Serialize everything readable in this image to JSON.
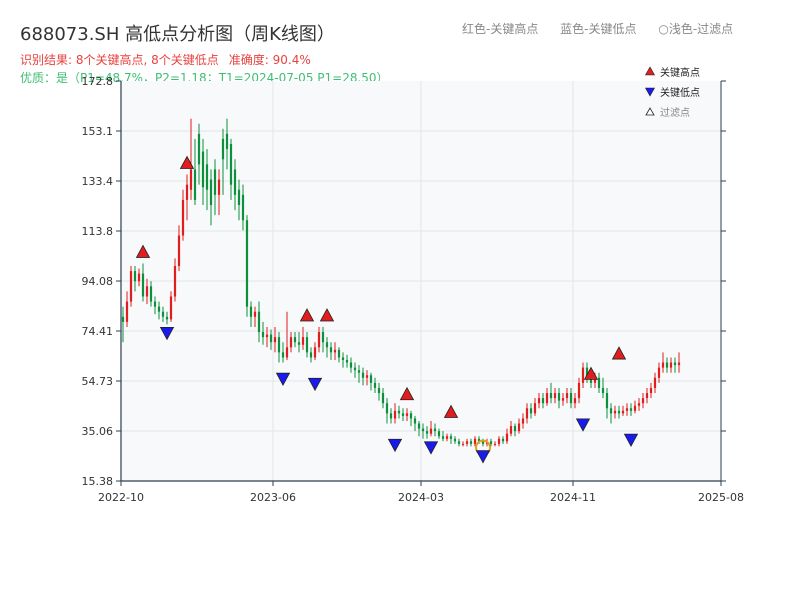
{
  "title": "688073.SH 高低点分析图（周K线图）",
  "header_legend": {
    "red": "红色-关键高点",
    "blue": "蓝色-关键低点",
    "light": "○浅色-过滤点"
  },
  "summary": {
    "result": "识别结果: 8个关键高点, 8个关键低点",
    "accuracy": "准确度: 90.4%",
    "quality": "优质：是（P1=48.7%，P2=1.18；T1=2024-07-05 P1=28.50）"
  },
  "colors": {
    "up": "#e11d1d",
    "down": "#0d8f3c",
    "high_marker": "#e11d1d",
    "low_marker": "#1a1aee",
    "filtered_ring": "#e0a020",
    "plot_bg": "#f7f9fb",
    "grid": "#e2e6ea",
    "axis": "#2c3e50"
  },
  "chart_data": {
    "type": "candlestick",
    "y_range": [
      15.38,
      172.8
    ],
    "y_ticks": [
      "172.8",
      "153.1",
      "133.4",
      "113.8",
      "94.08",
      "74.41",
      "54.73",
      "35.06",
      "15.38"
    ],
    "x_range": [
      0,
      150
    ],
    "x_ticks": [
      {
        "label": "2022-10",
        "pos": 0
      },
      {
        "label": "2023-06",
        "pos": 38
      },
      {
        "label": "2024-03",
        "pos": 75
      },
      {
        "label": "2024-11",
        "pos": 113
      },
      {
        "label": "2025-08",
        "pos": 150
      }
    ],
    "legend": {
      "placement": "top-right",
      "items": [
        {
          "label": "关键高点",
          "kind": "high"
        },
        {
          "label": "关键低点",
          "kind": "low"
        },
        {
          "label": "过滤点",
          "kind": "filtered"
        }
      ]
    },
    "candles": [
      [
        0,
        80,
        78,
        70,
        84
      ],
      [
        1,
        78,
        86,
        76,
        90
      ],
      [
        2,
        86,
        98,
        84,
        100
      ],
      [
        3,
        98,
        94,
        90,
        100
      ],
      [
        4,
        94,
        97,
        92,
        99
      ],
      [
        5,
        97,
        88,
        86,
        101
      ],
      [
        6,
        88,
        92,
        85,
        95
      ],
      [
        7,
        92,
        86,
        84,
        94
      ],
      [
        8,
        86,
        84,
        81,
        88
      ],
      [
        9,
        84,
        82,
        79,
        86
      ],
      [
        10,
        82,
        80,
        78,
        84
      ],
      [
        11,
        80,
        79,
        77,
        82
      ],
      [
        12,
        79,
        88,
        78,
        90
      ],
      [
        13,
        88,
        100,
        86,
        103
      ],
      [
        14,
        100,
        112,
        98,
        116
      ],
      [
        15,
        112,
        126,
        110,
        130
      ],
      [
        16,
        126,
        132,
        118,
        136
      ],
      [
        17,
        130,
        138,
        126,
        158
      ],
      [
        18,
        138,
        126,
        124,
        150
      ],
      [
        19,
        152,
        140,
        132,
        156
      ],
      [
        20,
        145,
        131,
        124,
        150
      ],
      [
        21,
        140,
        130,
        122,
        146
      ],
      [
        22,
        134,
        124,
        116,
        138
      ],
      [
        23,
        138,
        128,
        120,
        142
      ],
      [
        24,
        128,
        134,
        120,
        138
      ],
      [
        25,
        150,
        142,
        128,
        154
      ],
      [
        26,
        152,
        146,
        138,
        158
      ],
      [
        27,
        148,
        132,
        126,
        150
      ],
      [
        28,
        138,
        128,
        122,
        142
      ],
      [
        29,
        130,
        124,
        118,
        134
      ],
      [
        30,
        128,
        118,
        114,
        132
      ],
      [
        31,
        118,
        84,
        80,
        120
      ],
      [
        32,
        84,
        80,
        76,
        86
      ],
      [
        33,
        80,
        82,
        76,
        84
      ],
      [
        34,
        82,
        74,
        70,
        86
      ],
      [
        35,
        74,
        72,
        69,
        78
      ],
      [
        36,
        72,
        73,
        68,
        76
      ],
      [
        37,
        73,
        70,
        67,
        75
      ],
      [
        38,
        70,
        72,
        66,
        76
      ],
      [
        39,
        72,
        66,
        62,
        74
      ],
      [
        40,
        66,
        64,
        62,
        70
      ],
      [
        41,
        64,
        68,
        63,
        82
      ],
      [
        42,
        68,
        72,
        66,
        74
      ],
      [
        43,
        72,
        70,
        68,
        74
      ],
      [
        44,
        70,
        69,
        66,
        74
      ],
      [
        45,
        69,
        72,
        67,
        76
      ],
      [
        46,
        72,
        66,
        64,
        74
      ],
      [
        47,
        66,
        64,
        62,
        68
      ],
      [
        48,
        64,
        68,
        63,
        70
      ],
      [
        49,
        68,
        74,
        66,
        76
      ],
      [
        50,
        74,
        70,
        66,
        76
      ],
      [
        51,
        70,
        68,
        64,
        72
      ],
      [
        52,
        68,
        66,
        63,
        70
      ],
      [
        53,
        66,
        67,
        63,
        70
      ],
      [
        54,
        67,
        64,
        62,
        68
      ],
      [
        55,
        64,
        63,
        60,
        66
      ],
      [
        56,
        63,
        62,
        60,
        65
      ],
      [
        57,
        62,
        60,
        58,
        64
      ],
      [
        58,
        60,
        59,
        56,
        62
      ],
      [
        59,
        59,
        58,
        54,
        61
      ],
      [
        60,
        58,
        56,
        53,
        60
      ],
      [
        61,
        56,
        57,
        53,
        59
      ],
      [
        62,
        57,
        54,
        51,
        58
      ],
      [
        63,
        54,
        52,
        50,
        56
      ],
      [
        64,
        52,
        50,
        47,
        54
      ],
      [
        65,
        50,
        46,
        44,
        52
      ],
      [
        66,
        46,
        42,
        38,
        48
      ],
      [
        67,
        42,
        40,
        38,
        44
      ],
      [
        68,
        40,
        43,
        38,
        46
      ],
      [
        69,
        43,
        42,
        40,
        45
      ],
      [
        70,
        42,
        41,
        39,
        44
      ],
      [
        71,
        41,
        42,
        39,
        44
      ],
      [
        72,
        42,
        40,
        37,
        43
      ],
      [
        73,
        40,
        38,
        35,
        41
      ],
      [
        74,
        38,
        36,
        33,
        39
      ],
      [
        75,
        36,
        35,
        32,
        38
      ],
      [
        76,
        35,
        34,
        32,
        37
      ],
      [
        77,
        34,
        36,
        33,
        39
      ],
      [
        78,
        36,
        35,
        33,
        38
      ],
      [
        79,
        35,
        33,
        32,
        36
      ],
      [
        80,
        33,
        32,
        31,
        35
      ],
      [
        81,
        32,
        33,
        31,
        34
      ],
      [
        82,
        33,
        32,
        30,
        34
      ],
      [
        83,
        32,
        31,
        30,
        33
      ],
      [
        84,
        31,
        30,
        29,
        32
      ],
      [
        85,
        30,
        30,
        29,
        31
      ],
      [
        86,
        30,
        31,
        29,
        32
      ],
      [
        87,
        31,
        30,
        29,
        32
      ],
      [
        88,
        30,
        32,
        29,
        33
      ],
      [
        89,
        32,
        31,
        30,
        33
      ],
      [
        90,
        31,
        30,
        29,
        32
      ],
      [
        91,
        30,
        31,
        29,
        32
      ],
      [
        92,
        31,
        30,
        29,
        32
      ],
      [
        93,
        30,
        30,
        29,
        31
      ],
      [
        94,
        30,
        32,
        29,
        33
      ],
      [
        95,
        32,
        31,
        30,
        33
      ],
      [
        96,
        31,
        34,
        30,
        36
      ],
      [
        97,
        34,
        37,
        33,
        39
      ],
      [
        98,
        37,
        35,
        33,
        38
      ],
      [
        99,
        35,
        38,
        34,
        40
      ],
      [
        100,
        38,
        40,
        36,
        42
      ],
      [
        101,
        40,
        44,
        38,
        46
      ],
      [
        102,
        44,
        42,
        40,
        46
      ],
      [
        103,
        42,
        46,
        41,
        48
      ],
      [
        104,
        46,
        48,
        44,
        50
      ],
      [
        105,
        48,
        46,
        44,
        50
      ],
      [
        106,
        46,
        50,
        45,
        52
      ],
      [
        107,
        50,
        48,
        46,
        54
      ],
      [
        108,
        48,
        50,
        46,
        52
      ],
      [
        109,
        50,
        47,
        44,
        52
      ],
      [
        110,
        47,
        48,
        45,
        50
      ],
      [
        111,
        48,
        50,
        46,
        52
      ],
      [
        112,
        50,
        46,
        44,
        52
      ],
      [
        113,
        46,
        48,
        44,
        50
      ],
      [
        114,
        48,
        54,
        46,
        56
      ],
      [
        115,
        54,
        60,
        52,
        62
      ],
      [
        116,
        60,
        56,
        54,
        62
      ],
      [
        117,
        56,
        54,
        52,
        58
      ],
      [
        118,
        54,
        56,
        52,
        58
      ],
      [
        119,
        56,
        52,
        50,
        58
      ],
      [
        120,
        52,
        50,
        48,
        56
      ],
      [
        121,
        50,
        44,
        40,
        52
      ],
      [
        122,
        44,
        42,
        38,
        46
      ],
      [
        123,
        42,
        43,
        40,
        45
      ],
      [
        124,
        43,
        42,
        40,
        45
      ],
      [
        125,
        42,
        43,
        41,
        45
      ],
      [
        126,
        43,
        44,
        41,
        46
      ],
      [
        127,
        44,
        43,
        41,
        46
      ],
      [
        128,
        43,
        45,
        42,
        47
      ],
      [
        129,
        45,
        46,
        43,
        48
      ],
      [
        130,
        46,
        48,
        44,
        50
      ],
      [
        131,
        48,
        50,
        46,
        52
      ],
      [
        132,
        50,
        52,
        48,
        54
      ],
      [
        133,
        52,
        56,
        50,
        58
      ],
      [
        134,
        56,
        60,
        54,
        62
      ],
      [
        135,
        60,
        62,
        58,
        66
      ],
      [
        136,
        62,
        60,
        58,
        64
      ],
      [
        137,
        60,
        62,
        58,
        64
      ],
      [
        138,
        62,
        61,
        58,
        64
      ],
      [
        139,
        61,
        62,
        58,
        66
      ]
    ],
    "key_highs": [
      [
        5,
        101
      ],
      [
        16,
        136
      ],
      [
        46,
        76
      ],
      [
        51,
        76
      ],
      [
        71,
        45
      ],
      [
        82,
        38
      ],
      [
        117,
        53
      ],
      [
        124,
        61
      ]
    ],
    "key_lows": [
      [
        11,
        77
      ],
      [
        40,
        59
      ],
      [
        48,
        57
      ],
      [
        68,
        33
      ],
      [
        77,
        32
      ],
      [
        115,
        41
      ],
      [
        127,
        35
      ],
      [
        90,
        28.5
      ]
    ],
    "filtered": [
      [
        90,
        28.5
      ]
    ]
  }
}
